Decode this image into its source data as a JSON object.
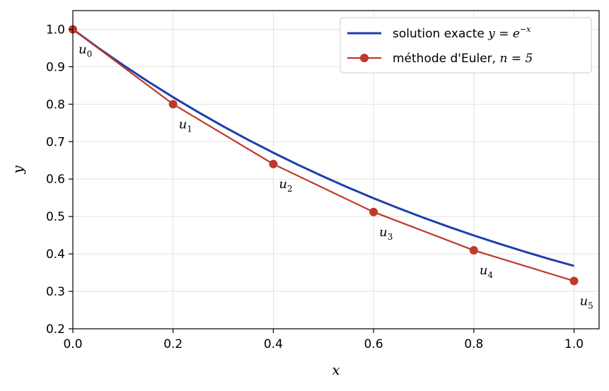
{
  "chart_data": {
    "type": "line",
    "xlabel": "x",
    "ylabel": "y",
    "xlim": [
      0.0,
      1.05
    ],
    "ylim": [
      0.2,
      1.05
    ],
    "xticks": [
      0.0,
      0.2,
      0.4,
      0.6,
      0.8,
      1.0
    ],
    "xtick_labels": [
      "0.0",
      "0.2",
      "0.4",
      "0.6",
      "0.8",
      "1.0"
    ],
    "yticks": [
      0.2,
      0.3,
      0.4,
      0.5,
      0.6,
      0.7,
      0.8,
      0.9,
      1.0
    ],
    "ytick_labels": [
      "0.2",
      "0.3",
      "0.4",
      "0.5",
      "0.6",
      "0.7",
      "0.8",
      "0.9",
      "1.0"
    ],
    "grid": true,
    "legend_position": "top-right",
    "series": [
      {
        "name": "solution exacte y = e^{-x}",
        "name_text": "solution exacte ",
        "name_math": "y = e",
        "name_sup": "−x",
        "color": "#1f3eaa",
        "x": [
          0.0,
          0.05,
          0.1,
          0.15,
          0.2,
          0.25,
          0.3,
          0.35,
          0.4,
          0.45,
          0.5,
          0.55,
          0.6,
          0.65,
          0.7,
          0.75,
          0.8,
          0.85,
          0.9,
          0.95,
          1.0
        ],
        "y": [
          1.0,
          0.9512,
          0.9048,
          0.8607,
          0.8187,
          0.7788,
          0.7408,
          0.7047,
          0.6703,
          0.6376,
          0.6065,
          0.5769,
          0.5488,
          0.522,
          0.4966,
          0.4724,
          0.4493,
          0.4274,
          0.4066,
          0.3867,
          0.3679
        ]
      },
      {
        "name": "méthode d'Euler, n = 5",
        "name_text": "méthode d'Euler, ",
        "name_math": "n = 5",
        "color": "#c0392b",
        "x": [
          0.0,
          0.2,
          0.4,
          0.6,
          0.8,
          1.0
        ],
        "y": [
          1.0,
          0.8,
          0.64,
          0.512,
          0.4096,
          0.32768
        ],
        "point_labels": [
          "u",
          "u",
          "u",
          "u",
          "u",
          "u"
        ],
        "point_subscripts": [
          "0",
          "1",
          "2",
          "3",
          "4",
          "5"
        ]
      }
    ]
  }
}
